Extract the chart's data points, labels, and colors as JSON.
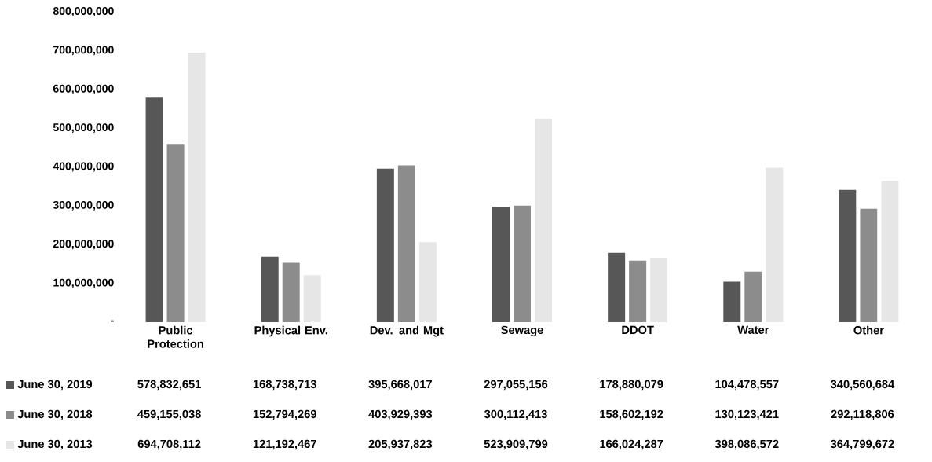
{
  "chart_data": {
    "type": "bar",
    "categories": [
      "Public Protection",
      "Physical Env.",
      "Dev. and Mgt",
      "Sewage",
      "DDOT",
      "Water",
      "Other"
    ],
    "series": [
      {
        "name": "June 30, 2019",
        "color": "#575757",
        "values": [
          578832651,
          168738713,
          395668017,
          297055156,
          178880079,
          104478557,
          340560684
        ],
        "value_labels": [
          "578,832,651",
          "168,738,713",
          "395,668,017",
          "297,055,156",
          "178,880,079",
          "104,478,557",
          "340,560,684"
        ]
      },
      {
        "name": "June 30, 2018",
        "color": "#8c8c8c",
        "values": [
          459155038,
          152794269,
          403929393,
          300112413,
          158602192,
          130123421,
          292118806
        ],
        "value_labels": [
          "459,155,038",
          "152,794,269",
          "403,929,393",
          "300,112,413",
          "158,602,192",
          "130,123,421",
          "292,118,806"
        ]
      },
      {
        "name": "June 30, 2013",
        "color": "#e6e6e6",
        "values": [
          694708112,
          121192467,
          205937823,
          523909799,
          166024287,
          398086572,
          364799672
        ],
        "value_labels": [
          "694,708,112",
          "121,192,467",
          "205,937,823",
          "523,909,799",
          "166,024,287",
          "398,086,572",
          "364,799,672"
        ]
      }
    ],
    "ylim": [
      0,
      800000000
    ],
    "yticks": [
      {
        "value": 0,
        "label": "-"
      },
      {
        "value": 100000000,
        "label": "100,000,000"
      },
      {
        "value": 200000000,
        "label": "200,000,000"
      },
      {
        "value": 300000000,
        "label": "300,000,000"
      },
      {
        "value": 400000000,
        "label": "400,000,000"
      },
      {
        "value": 500000000,
        "label": "500,000,000"
      },
      {
        "value": 600000000,
        "label": "600,000,000"
      },
      {
        "value": 700000000,
        "label": "700,000,000"
      },
      {
        "value": 800000000,
        "label": "800,000,000"
      }
    ],
    "legend": "bottom"
  }
}
